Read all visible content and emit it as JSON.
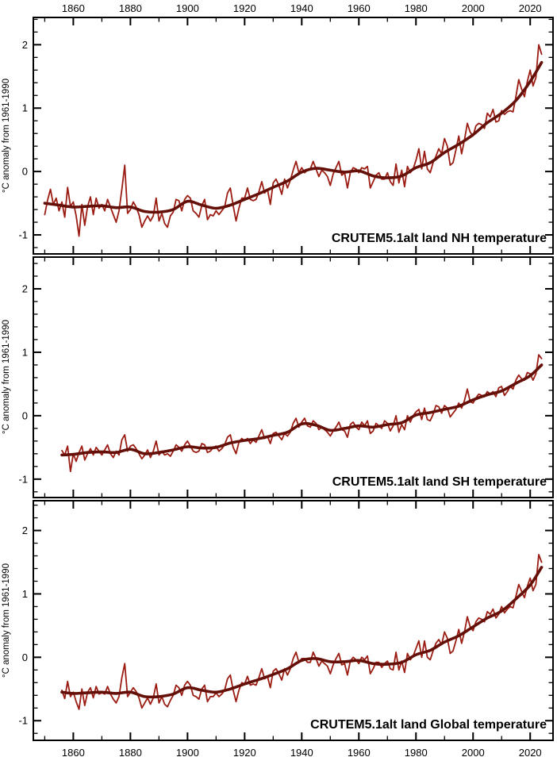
{
  "figure": {
    "background": "#ffffff",
    "axis_color": "#000000",
    "y_axis_label": "°C anomaly from 1961-1990",
    "xlim": [
      1846,
      2028
    ],
    "x_major_ticks": [
      1860,
      1880,
      1900,
      1920,
      1940,
      1960,
      1980,
      2000,
      2020
    ],
    "x_minor_step": 10,
    "y_major_ticks": [
      -1,
      0,
      1,
      2
    ],
    "y_minor_step": 0.2,
    "annual_color": "#9b1c12",
    "smoothed_color": "#641009"
  },
  "chart_data": [
    {
      "type": "line",
      "title": "CRUTEM5.1alt land NH temperature",
      "xlabel": "",
      "ylabel": "°C anomaly from 1961-1990",
      "xlim": [
        1846,
        2028
      ],
      "ylim": [
        -1.3,
        2.43
      ],
      "grid": false,
      "legend": "none",
      "series": [
        {
          "name": "annual anomaly",
          "color": "#9b1c12",
          "start_year": 1850,
          "values": [
            -0.68,
            -0.45,
            -0.28,
            -0.52,
            -0.42,
            -0.62,
            -0.48,
            -0.72,
            -0.25,
            -0.55,
            -0.48,
            -0.7,
            -1.02,
            -0.52,
            -0.85,
            -0.55,
            -0.4,
            -0.68,
            -0.42,
            -0.58,
            -0.52,
            -0.62,
            -0.44,
            -0.56,
            -0.68,
            -0.8,
            -0.62,
            -0.28,
            0.1,
            -0.66,
            -0.6,
            -0.48,
            -0.56,
            -0.68,
            -0.88,
            -0.78,
            -0.7,
            -0.78,
            -0.7,
            -0.42,
            -0.78,
            -0.66,
            -0.82,
            -0.88,
            -0.7,
            -0.64,
            -0.44,
            -0.46,
            -0.62,
            -0.44,
            -0.38,
            -0.42,
            -0.62,
            -0.66,
            -0.72,
            -0.54,
            -0.44,
            -0.76,
            -0.68,
            -0.7,
            -0.62,
            -0.68,
            -0.62,
            -0.56,
            -0.34,
            -0.26,
            -0.54,
            -0.78,
            -0.58,
            -0.42,
            -0.42,
            -0.26,
            -0.44,
            -0.46,
            -0.44,
            -0.32,
            -0.16,
            -0.34,
            -0.28,
            -0.52,
            -0.18,
            -0.12,
            -0.22,
            -0.36,
            -0.12,
            -0.26,
            -0.14,
            0.02,
            0.16,
            -0.02,
            0.06,
            -0.02,
            0.02,
            0.04,
            0.16,
            0.04,
            -0.08,
            0.02,
            -0.02,
            -0.08,
            -0.22,
            -0.04,
            0.06,
            0.16,
            -0.06,
            -0.02,
            -0.26,
            -0.02,
            0.06,
            0.04,
            -0.02,
            0.06,
            0.04,
            0.08,
            -0.26,
            -0.16,
            -0.06,
            -0.02,
            -0.12,
            -0.12,
            -0.02,
            -0.16,
            -0.22,
            0.12,
            -0.18,
            0.02,
            -0.24,
            0.08,
            -0.02,
            0.04,
            0.18,
            0.36,
            0.04,
            0.32,
            0.04,
            -0.02,
            0.14,
            0.24,
            0.36,
            0.28,
            0.52,
            0.4,
            0.1,
            0.14,
            0.34,
            0.56,
            0.28,
            0.5,
            0.76,
            0.62,
            0.56,
            0.72,
            0.76,
            0.74,
            0.68,
            0.92,
            0.86,
            0.98,
            0.78,
            0.8,
            0.96,
            0.9,
            0.94,
            0.96,
            0.94,
            1.18,
            1.45,
            1.3,
            1.18,
            1.42,
            1.6,
            1.35,
            1.48,
            2.0,
            1.85
          ]
        },
        {
          "name": "smoothed",
          "color": "#641009",
          "years": [
            1850,
            1855,
            1860,
            1865,
            1870,
            1875,
            1880,
            1885,
            1890,
            1895,
            1900,
            1905,
            1910,
            1915,
            1920,
            1925,
            1930,
            1935,
            1940,
            1945,
            1950,
            1955,
            1960,
            1965,
            1970,
            1975,
            1980,
            1985,
            1990,
            1995,
            2000,
            2005,
            2010,
            2015,
            2020,
            2024
          ],
          "values": [
            -0.5,
            -0.53,
            -0.56,
            -0.55,
            -0.54,
            -0.57,
            -0.56,
            -0.63,
            -0.64,
            -0.6,
            -0.47,
            -0.53,
            -0.58,
            -0.53,
            -0.44,
            -0.35,
            -0.25,
            -0.15,
            -0.01,
            0.05,
            0.02,
            -0.01,
            0.01,
            -0.07,
            -0.1,
            -0.07,
            0.06,
            0.14,
            0.3,
            0.43,
            0.58,
            0.77,
            0.92,
            1.12,
            1.42,
            1.72
          ]
        }
      ]
    },
    {
      "type": "line",
      "title": "CRUTEM5.1alt land SH temperature",
      "xlabel": "",
      "ylabel": "°C anomaly from 1961-1990",
      "xlim": [
        1846,
        2028
      ],
      "ylim": [
        -1.29,
        2.5
      ],
      "grid": false,
      "legend": "none",
      "series": [
        {
          "name": "annual anomaly",
          "color": "#9b1c12",
          "start_year": 1856,
          "values": [
            -0.55,
            -0.62,
            -0.48,
            -0.88,
            -0.6,
            -0.72,
            -0.58,
            -0.48,
            -0.7,
            -0.6,
            -0.52,
            -0.62,
            -0.5,
            -0.56,
            -0.62,
            -0.54,
            -0.46,
            -0.6,
            -0.66,
            -0.56,
            -0.62,
            -0.38,
            -0.3,
            -0.56,
            -0.48,
            -0.46,
            -0.52,
            -0.6,
            -0.68,
            -0.62,
            -0.54,
            -0.66,
            -0.56,
            -0.4,
            -0.62,
            -0.56,
            -0.62,
            -0.6,
            -0.64,
            -0.56,
            -0.46,
            -0.5,
            -0.56,
            -0.46,
            -0.4,
            -0.48,
            -0.56,
            -0.58,
            -0.56,
            -0.44,
            -0.46,
            -0.58,
            -0.56,
            -0.5,
            -0.48,
            -0.56,
            -0.52,
            -0.46,
            -0.34,
            -0.3,
            -0.5,
            -0.6,
            -0.42,
            -0.36,
            -0.4,
            -0.36,
            -0.44,
            -0.38,
            -0.42,
            -0.32,
            -0.22,
            -0.36,
            -0.32,
            -0.44,
            -0.28,
            -0.26,
            -0.32,
            -0.38,
            -0.28,
            -0.32,
            -0.26,
            -0.12,
            -0.04,
            -0.18,
            -0.1,
            -0.04,
            -0.16,
            -0.18,
            -0.08,
            -0.12,
            -0.22,
            -0.18,
            -0.22,
            -0.26,
            -0.32,
            -0.24,
            -0.18,
            -0.1,
            -0.22,
            -0.24,
            -0.34,
            -0.14,
            -0.1,
            -0.18,
            -0.22,
            -0.1,
            -0.16,
            -0.08,
            -0.28,
            -0.24,
            -0.12,
            -0.16,
            -0.2,
            -0.08,
            -0.12,
            -0.24,
            -0.16,
            0.0,
            -0.26,
            -0.14,
            -0.22,
            0.0,
            -0.1,
            0.0,
            0.06,
            0.1,
            -0.06,
            0.12,
            -0.06,
            -0.08,
            0.02,
            0.16,
            0.14,
            0.04,
            0.16,
            0.12,
            -0.02,
            0.04,
            0.1,
            0.2,
            0.12,
            0.24,
            0.42,
            0.22,
            0.2,
            0.28,
            0.34,
            0.32,
            0.3,
            0.38,
            0.34,
            0.38,
            0.3,
            0.44,
            0.46,
            0.32,
            0.38,
            0.46,
            0.42,
            0.56,
            0.64,
            0.58,
            0.56,
            0.68,
            0.66,
            0.56,
            0.66,
            0.96,
            0.9
          ]
        },
        {
          "name": "smoothed",
          "color": "#641009",
          "years": [
            1856,
            1860,
            1865,
            1870,
            1875,
            1880,
            1885,
            1890,
            1895,
            1900,
            1905,
            1910,
            1915,
            1920,
            1925,
            1930,
            1935,
            1940,
            1945,
            1950,
            1955,
            1960,
            1965,
            1970,
            1975,
            1980,
            1985,
            1990,
            1995,
            2000,
            2005,
            2010,
            2015,
            2020,
            2024
          ],
          "values": [
            -0.62,
            -0.61,
            -0.58,
            -0.57,
            -0.58,
            -0.53,
            -0.6,
            -0.58,
            -0.54,
            -0.49,
            -0.51,
            -0.5,
            -0.43,
            -0.39,
            -0.36,
            -0.31,
            -0.26,
            -0.13,
            -0.15,
            -0.23,
            -0.2,
            -0.16,
            -0.18,
            -0.14,
            -0.11,
            0.01,
            0.05,
            0.1,
            0.15,
            0.25,
            0.33,
            0.39,
            0.51,
            0.63,
            0.8
          ]
        }
      ]
    },
    {
      "type": "line",
      "title": "CRUTEM5.1alt land Global temperature",
      "xlabel": "",
      "ylabel": "°C anomaly from 1961-1990",
      "xlim": [
        1846,
        2028
      ],
      "ylim": [
        -1.31,
        2.47
      ],
      "grid": false,
      "legend": "none",
      "series": [
        {
          "name": "annual anomaly",
          "color": "#9b1c12",
          "start_year": 1856,
          "values": [
            -0.52,
            -0.65,
            -0.38,
            -0.62,
            -0.55,
            -0.7,
            -0.82,
            -0.5,
            -0.76,
            -0.55,
            -0.48,
            -0.64,
            -0.46,
            -0.58,
            -0.56,
            -0.58,
            -0.46,
            -0.58,
            -0.66,
            -0.72,
            -0.62,
            -0.32,
            -0.1,
            -0.62,
            -0.55,
            -0.48,
            -0.54,
            -0.64,
            -0.8,
            -0.72,
            -0.64,
            -0.74,
            -0.64,
            -0.42,
            -0.72,
            -0.62,
            -0.74,
            -0.78,
            -0.68,
            -0.6,
            -0.44,
            -0.48,
            -0.6,
            -0.44,
            -0.38,
            -0.44,
            -0.6,
            -0.62,
            -0.66,
            -0.5,
            -0.44,
            -0.7,
            -0.62,
            -0.62,
            -0.56,
            -0.62,
            -0.58,
            -0.52,
            -0.34,
            -0.28,
            -0.52,
            -0.7,
            -0.52,
            -0.4,
            -0.42,
            -0.3,
            -0.44,
            -0.42,
            -0.44,
            -0.32,
            -0.18,
            -0.34,
            -0.3,
            -0.48,
            -0.22,
            -0.18,
            -0.26,
            -0.36,
            -0.18,
            -0.28,
            -0.18,
            -0.02,
            0.08,
            -0.08,
            -0.02,
            -0.02,
            -0.08,
            -0.08,
            0.08,
            -0.02,
            -0.14,
            -0.06,
            -0.1,
            -0.14,
            -0.26,
            -0.12,
            -0.02,
            0.06,
            -0.12,
            -0.1,
            -0.28,
            -0.06,
            0.0,
            -0.04,
            -0.1,
            0.0,
            -0.04,
            0.02,
            -0.26,
            -0.18,
            -0.08,
            -0.08,
            -0.16,
            -0.1,
            -0.06,
            -0.18,
            -0.2,
            0.08,
            -0.2,
            -0.06,
            -0.24,
            0.06,
            -0.04,
            0.02,
            0.14,
            0.26,
            0.0,
            0.26,
            0.0,
            -0.04,
            0.1,
            0.22,
            0.28,
            0.2,
            0.4,
            0.3,
            0.06,
            0.1,
            0.26,
            0.44,
            0.22,
            0.4,
            0.64,
            0.48,
            0.42,
            0.56,
            0.62,
            0.6,
            0.56,
            0.72,
            0.68,
            0.76,
            0.62,
            0.68,
            0.8,
            0.7,
            0.76,
            0.8,
            0.78,
            0.96,
            1.15,
            1.04,
            0.94,
            1.12,
            1.25,
            1.05,
            1.15,
            1.62,
            1.5
          ]
        },
        {
          "name": "smoothed",
          "color": "#641009",
          "years": [
            1856,
            1860,
            1865,
            1870,
            1875,
            1880,
            1885,
            1890,
            1895,
            1900,
            1905,
            1910,
            1915,
            1920,
            1925,
            1930,
            1935,
            1940,
            1945,
            1950,
            1955,
            1960,
            1965,
            1970,
            1975,
            1980,
            1985,
            1990,
            1995,
            2000,
            2005,
            2010,
            2015,
            2020,
            2024
          ],
          "values": [
            -0.55,
            -0.57,
            -0.56,
            -0.55,
            -0.57,
            -0.55,
            -0.62,
            -0.62,
            -0.58,
            -0.48,
            -0.52,
            -0.55,
            -0.5,
            -0.42,
            -0.35,
            -0.27,
            -0.18,
            -0.05,
            -0.02,
            -0.07,
            -0.07,
            -0.05,
            -0.1,
            -0.11,
            -0.08,
            0.04,
            0.11,
            0.24,
            0.34,
            0.48,
            0.62,
            0.73,
            0.92,
            1.14,
            1.42
          ]
        }
      ]
    }
  ]
}
